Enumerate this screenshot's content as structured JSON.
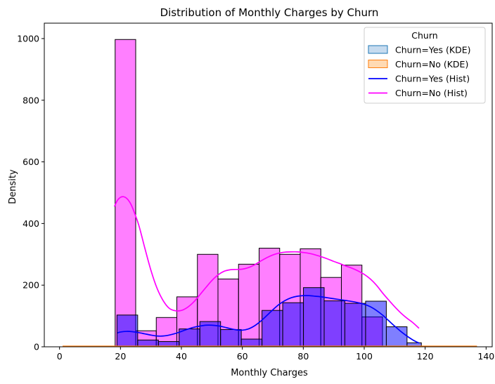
{
  "chart_data": {
    "type": "histogram",
    "title": "Distribution of Monthly Charges by Churn",
    "xlabel": "Monthly Charges",
    "ylabel": "Density",
    "xlim": [
      -5,
      142
    ],
    "ylim": [
      0,
      1050
    ],
    "xticks": [
      0,
      20,
      40,
      60,
      80,
      100,
      120,
      140
    ],
    "yticks": [
      0,
      200,
      400,
      600,
      800,
      1000
    ],
    "grid": false,
    "legend": {
      "title": "Churn",
      "position": "top-right",
      "entries": [
        {
          "label": "Churn=Yes (KDE)",
          "kind": "patch",
          "fill": "#c6dbef",
          "stroke": "#1f77b4"
        },
        {
          "label": "Churn=No (KDE)",
          "kind": "patch",
          "fill": "#ffdab3",
          "stroke": "#ff7f0e"
        },
        {
          "label": "Churn=Yes (Hist)",
          "kind": "line",
          "color": "#0000ff"
        },
        {
          "label": "Churn=No (Hist)",
          "kind": "line",
          "color": "#ff00ff"
        }
      ]
    },
    "series": [
      {
        "name": "Churn=No (Hist)",
        "color": "#ff00ff",
        "fill_opacity": 0.5,
        "bins": [
          {
            "start": 18.25,
            "end": 25.0,
            "value": 997
          },
          {
            "start": 25.0,
            "end": 31.75,
            "value": 52
          },
          {
            "start": 31.75,
            "end": 38.5,
            "value": 95
          },
          {
            "start": 38.5,
            "end": 45.25,
            "value": 162
          },
          {
            "start": 45.25,
            "end": 52.0,
            "value": 300
          },
          {
            "start": 52.0,
            "end": 58.75,
            "value": 220
          },
          {
            "start": 58.75,
            "end": 65.5,
            "value": 268
          },
          {
            "start": 65.5,
            "end": 72.25,
            "value": 320
          },
          {
            "start": 72.25,
            "end": 79.0,
            "value": 300
          },
          {
            "start": 79.0,
            "end": 85.75,
            "value": 318
          },
          {
            "start": 85.75,
            "end": 92.5,
            "value": 225
          },
          {
            "start": 92.5,
            "end": 99.25,
            "value": 265
          },
          {
            "start": 99.25,
            "end": 106.0,
            "value": 97
          }
        ],
        "kde": {
          "x": [
            18,
            19,
            20,
            21,
            22,
            23,
            24,
            26,
            28,
            30,
            32,
            34,
            36,
            38,
            40,
            42,
            44,
            46,
            48,
            50,
            52,
            54,
            56,
            58,
            60,
            62,
            64,
            66,
            68,
            70,
            72,
            74,
            76,
            78,
            80,
            82,
            84,
            86,
            88,
            90,
            92,
            94,
            96,
            98,
            100,
            102,
            104,
            106,
            108,
            110,
            112,
            114,
            116,
            118
          ],
          "y": [
            455,
            475,
            485,
            487,
            482,
            470,
            450,
            395,
            320,
            248,
            190,
            150,
            125,
            117,
            118,
            128,
            145,
            168,
            192,
            215,
            233,
            245,
            250,
            251,
            252,
            257,
            266,
            278,
            289,
            298,
            304,
            307,
            308,
            308,
            306,
            303,
            298,
            292,
            285,
            277,
            270,
            262,
            255,
            246,
            235,
            220,
            200,
            175,
            152,
            130,
            110,
            93,
            78,
            60
          ]
        }
      },
      {
        "name": "Churn=Yes (Hist)",
        "color": "#0000ff",
        "fill_opacity": 0.5,
        "bins": [
          {
            "start": 18.85,
            "end": 25.65,
            "value": 103
          },
          {
            "start": 25.65,
            "end": 32.45,
            "value": 22
          },
          {
            "start": 32.45,
            "end": 39.25,
            "value": 17
          },
          {
            "start": 39.25,
            "end": 46.05,
            "value": 58
          },
          {
            "start": 46.05,
            "end": 52.85,
            "value": 82
          },
          {
            "start": 52.85,
            "end": 59.65,
            "value": 56
          },
          {
            "start": 59.65,
            "end": 66.45,
            "value": 25
          },
          {
            "start": 66.45,
            "end": 73.25,
            "value": 118
          },
          {
            "start": 73.25,
            "end": 80.05,
            "value": 143
          },
          {
            "start": 80.05,
            "end": 86.85,
            "value": 192
          },
          {
            "start": 86.85,
            "end": 93.65,
            "value": 149
          },
          {
            "start": 93.65,
            "end": 100.45,
            "value": 141
          },
          {
            "start": 100.45,
            "end": 107.25,
            "value": 148
          },
          {
            "start": 107.25,
            "end": 114.05,
            "value": 65
          },
          {
            "start": 114.05,
            "end": 118.75,
            "value": 13
          }
        ],
        "kde": {
          "x": [
            19,
            20,
            22,
            24,
            26,
            28,
            30,
            32,
            34,
            36,
            38,
            40,
            42,
            44,
            46,
            48,
            50,
            52,
            54,
            56,
            58,
            60,
            62,
            64,
            66,
            68,
            70,
            72,
            74,
            76,
            78,
            80,
            82,
            84,
            86,
            88,
            90,
            92,
            94,
            96,
            98,
            100,
            102,
            104,
            106,
            108,
            110,
            112,
            114,
            116,
            118
          ],
          "y": [
            45,
            48,
            50,
            49,
            46,
            42,
            38,
            35,
            35,
            38,
            43,
            50,
            57,
            63,
            67,
            70,
            70,
            68,
            64,
            59,
            55,
            54,
            58,
            68,
            83,
            101,
            120,
            137,
            150,
            159,
            164,
            166,
            166,
            164,
            162,
            159,
            156,
            153,
            150,
            147,
            143,
            138,
            130,
            118,
            103,
            85,
            67,
            50,
            35,
            22,
            12
          ]
        }
      },
      {
        "name": "Churn=Yes (KDE)",
        "color": "#1f77b4",
        "fill": "#c6dbef",
        "range": [
          1,
          137
        ],
        "value": 0
      },
      {
        "name": "Churn=No (KDE)",
        "color": "#ff7f0e",
        "fill": "#ffdab3",
        "range": [
          1,
          137
        ],
        "value": 0
      }
    ]
  }
}
